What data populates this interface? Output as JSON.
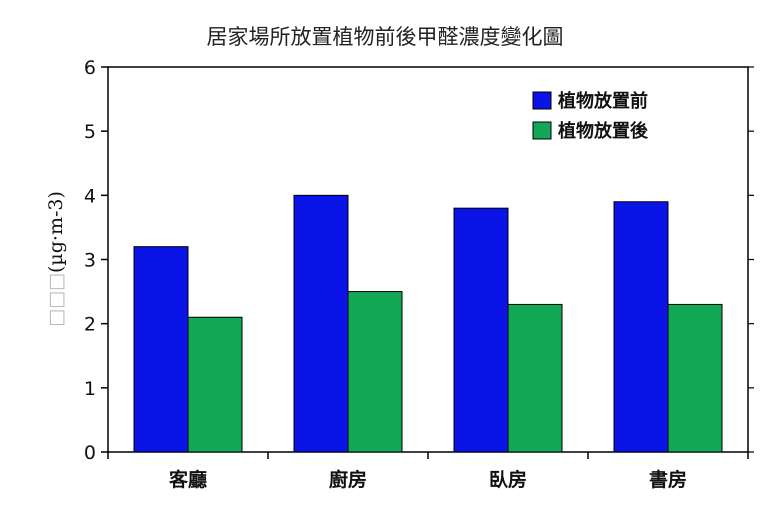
{
  "chart_data": {
    "type": "bar",
    "title": "居家場所放置植物前後甲醛濃度變化圖",
    "ylabel_prefix": "□□□",
    "ylabel": "(µg·m-3)",
    "xlabel": "",
    "categories": [
      "客廳",
      "廚房",
      "臥房",
      "書房"
    ],
    "series": [
      {
        "name": "植物放置前",
        "color": "#0A14E6",
        "values": [
          3.2,
          4.0,
          3.8,
          3.9
        ]
      },
      {
        "name": "植物放置後",
        "color": "#12A855",
        "values": [
          2.1,
          2.5,
          2.3,
          2.3
        ]
      }
    ],
    "ylim": [
      0,
      6
    ],
    "yticks": [
      0,
      1,
      2,
      3,
      4,
      5,
      6
    ],
    "grid": false,
    "legend": "top-right"
  }
}
